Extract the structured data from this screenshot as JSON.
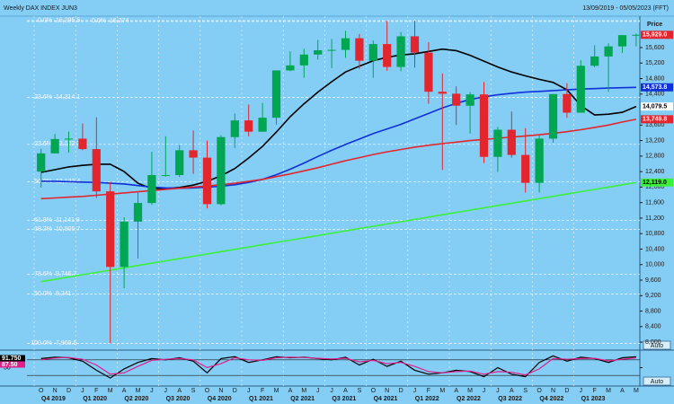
{
  "chart_data": {
    "type": "candlestick",
    "title": "Weekly DAX INDEX JUN3",
    "date_range": "13/09/2019 - 05/05/2023 (FFT)",
    "price_label": "Price",
    "auto_labels": [
      "Auto",
      "Auto"
    ],
    "months": [
      "O",
      "N",
      "D",
      "J",
      "F",
      "M",
      "A",
      "M",
      "J",
      "J",
      "A",
      "S",
      "O",
      "N",
      "D",
      "J",
      "F",
      "M",
      "A",
      "M",
      "J",
      "J",
      "A",
      "S",
      "O",
      "N",
      "D",
      "J",
      "F",
      "M",
      "A",
      "M",
      "J",
      "J",
      "A",
      "S",
      "O",
      "N",
      "D",
      "J",
      "F",
      "M",
      "A",
      "M"
    ],
    "quarters": [
      "Q4 2019",
      "Q1 2020",
      "Q2 2020",
      "Q3 2020",
      "Q4 2020",
      "Q1 2021",
      "Q2 2021",
      "Q3 2021",
      "Q4 2021",
      "Q1 2022",
      "Q2 2022",
      "Q3 2022",
      "Q4 2022",
      "Q1 2023"
    ],
    "ylim": [
      7840,
      16410
    ],
    "yticks": [
      {
        "value": 8000,
        "label": "8,000"
      },
      {
        "value": 8400,
        "label": "8,400"
      },
      {
        "value": 8800,
        "label": "8,800"
      },
      {
        "value": 9200,
        "label": "9,200"
      },
      {
        "value": 9600,
        "label": "9,600"
      },
      {
        "value": 10000,
        "label": "10,000"
      },
      {
        "value": 10400,
        "label": "10,400"
      },
      {
        "value": 10800,
        "label": "10,800"
      },
      {
        "value": 11200,
        "label": "11,200"
      },
      {
        "value": 11600,
        "label": "11,600"
      },
      {
        "value": 12000,
        "label": "12,000"
      },
      {
        "value": 12400,
        "label": "12,400"
      },
      {
        "value": 12800,
        "label": "12,800"
      },
      {
        "value": 13200,
        "label": "13,200"
      },
      {
        "value": 13600,
        "label": "13,600"
      },
      {
        "value": 14400,
        "label": "14,400"
      },
      {
        "value": 14800,
        "label": "14,800"
      },
      {
        "value": 15200,
        "label": "15,200"
      },
      {
        "value": 15600,
        "label": "15,600"
      }
    ],
    "up_color": "#00a651",
    "down_color": "#e3262d",
    "candles": {
      "open": [
        12400,
        12870,
        13240,
        13250,
        12980,
        11890,
        9940,
        11110,
        11590,
        12310,
        12310,
        12950,
        12760,
        11560,
        13290,
        13720,
        13430,
        13790,
        15010,
        15140,
        15420,
        15530,
        15540,
        15840,
        15260,
        15690,
        15100,
        15890,
        15470,
        14460,
        14410,
        14100,
        14390,
        12780,
        13480,
        12830,
        12110,
        13250,
        14400,
        13920,
        15130,
        15370,
        15630,
        15920
      ],
      "high": [
        12990,
        13370,
        13430,
        13640,
        13800,
        12130,
        11220,
        11890,
        12910,
        13310,
        13080,
        13460,
        13200,
        13340,
        13900,
        14130,
        14170,
        15010,
        15500,
        15570,
        15800,
        15820,
        16030,
        15950,
        15780,
        16290,
        16000,
        16290,
        15740,
        14930,
        14600,
        14450,
        14710,
        13550,
        13950,
        13520,
        13330,
        14400,
        14680,
        15270,
        15660,
        15710,
        15920,
        15960
      ],
      "low": [
        11990,
        12870,
        12890,
        12950,
        11720,
        7970,
        9390,
        10160,
        11540,
        12270,
        12260,
        12340,
        11450,
        11530,
        13010,
        13310,
        13430,
        13610,
        14990,
        14820,
        15290,
        15070,
        15340,
        15050,
        14820,
        15000,
        14990,
        15080,
        14150,
        12440,
        13600,
        13380,
        12620,
        12390,
        12760,
        11860,
        11860,
        13150,
        13790,
        13920,
        15090,
        14460,
        15460,
        15630
      ],
      "close": [
        12870,
        13240,
        13250,
        12980,
        11890,
        9940,
        11110,
        11590,
        12310,
        12310,
        12950,
        12760,
        11560,
        13290,
        13720,
        13430,
        13790,
        15010,
        15140,
        15420,
        15530,
        15540,
        15840,
        15260,
        15690,
        15100,
        15890,
        15470,
        14460,
        14410,
        14100,
        14390,
        12780,
        13480,
        12830,
        12110,
        13250,
        14400,
        13920,
        15130,
        15370,
        15630,
        15920,
        15929
      ],
      "close_tag": "15,929.0"
    },
    "series": [
      {
        "color": "#000000",
        "tag": "14,079.5",
        "values": [
          12380,
          12450,
          12520,
          12560,
          12590,
          12590,
          12400,
          12100,
          11960,
          11960,
          11990,
          12050,
          12150,
          12290,
          12480,
          12750,
          13050,
          13420,
          13815,
          14150,
          14450,
          14720,
          14970,
          15120,
          15260,
          15350,
          15410,
          15440,
          15500,
          15560,
          15520,
          15400,
          15250,
          15100,
          14970,
          14870,
          14780,
          14700,
          14510,
          14100,
          13860,
          13880,
          13930,
          14079.5
        ]
      },
      {
        "color": "#1030d8",
        "tag": "14,573.8",
        "values": [
          12150,
          12150,
          12140,
          12130,
          12120,
          12100,
          12080,
          12040,
          12000,
          11980,
          11970,
          11980,
          12000,
          12020,
          12060,
          12120,
          12200,
          12320,
          12460,
          12620,
          12790,
          12950,
          13100,
          13240,
          13380,
          13500,
          13620,
          13760,
          13900,
          14040,
          14160,
          14260,
          14330,
          14380,
          14420,
          14450,
          14470,
          14490,
          14510,
          14530,
          14540,
          14555,
          14565,
          14573.8
        ]
      },
      {
        "color": "#e3262d",
        "tag": "13,749.8",
        "values": [
          11700,
          11720,
          11740,
          11760,
          11790,
          11820,
          11850,
          11880,
          11910,
          11940,
          11970,
          12000,
          12030,
          12060,
          12100,
          12150,
          12200,
          12270,
          12340,
          12420,
          12500,
          12590,
          12680,
          12760,
          12840,
          12910,
          12970,
          13030,
          13080,
          13120,
          13160,
          13200,
          13230,
          13260,
          13290,
          13320,
          13350,
          13390,
          13430,
          13480,
          13540,
          13600,
          13680,
          13749.8
        ]
      },
      {
        "color": "#3cf03c",
        "tag": "12,119.0",
        "values": [
          9560,
          9620,
          9679,
          9739,
          9798,
          9858,
          9917,
          9977,
          10036,
          10096,
          10155,
          10215,
          10274,
          10334,
          10393,
          10453,
          10512,
          10572,
          10631,
          10691,
          10750,
          10810,
          10869,
          10929,
          10988,
          11048,
          11107,
          11167,
          11226,
          11286,
          11345,
          11405,
          11464,
          11524,
          11583,
          11643,
          11702,
          11762,
          11821,
          11881,
          11940,
          12000,
          12059,
          12119
        ]
      }
    ],
    "fib_levels": [
      {
        "pct": "0.0%",
        "value": 16295.5,
        "label": "16,295.5"
      },
      {
        "pct": "0.0%",
        "value": 16274,
        "label": "16,274"
      },
      {
        "pct": "23.6%",
        "value": 14314.1,
        "label": "14,314.1"
      },
      {
        "pct": "23.6%",
        "value": 13102.3,
        "label": "13,102.3"
      },
      {
        "pct": "50.0%",
        "value": 12132.4,
        "label": "12,132.4"
      },
      {
        "pct": "61.8%",
        "value": 11141.8,
        "label": "11,141.8"
      },
      {
        "pct": "38.2%",
        "value": 10905.7,
        "label": "10,905.7"
      },
      {
        "pct": "78.6%",
        "value": 9746.7,
        "label": "9,746.7"
      },
      {
        "pct": "50.0%",
        "value": 9241,
        "label": "9,241"
      },
      {
        "pct": "100.0%",
        "value": 7969.5,
        "label": "7,969.5"
      }
    ],
    "stochastic": {
      "ylim": [
        0,
        100
      ],
      "yticks": [
        50
      ],
      "ref_lines": [
        80,
        20
      ],
      "series": [
        {
          "color": "#000000",
          "tag": "91.750",
          "values": [
            85,
            90,
            88,
            75,
            40,
            10,
            45,
            70,
            85,
            80,
            88,
            75,
            30,
            85,
            92,
            70,
            80,
            92,
            88,
            90,
            85,
            80,
            90,
            60,
            82,
            55,
            75,
            40,
            25,
            30,
            40,
            35,
            15,
            50,
            25,
            15,
            70,
            95,
            75,
            90,
            85,
            70,
            88,
            91.75
          ]
        },
        {
          "color": "#e0208a",
          "tag": "87.50",
          "values": [
            80,
            87,
            89,
            82,
            60,
            25,
            30,
            55,
            78,
            82,
            85,
            80,
            50,
            65,
            88,
            80,
            78,
            88,
            90,
            89,
            86,
            83,
            86,
            72,
            78,
            65,
            70,
            55,
            35,
            30,
            35,
            37,
            25,
            35,
            32,
            22,
            45,
            85,
            82,
            85,
            86,
            76,
            82,
            87.5
          ]
        }
      ]
    }
  }
}
